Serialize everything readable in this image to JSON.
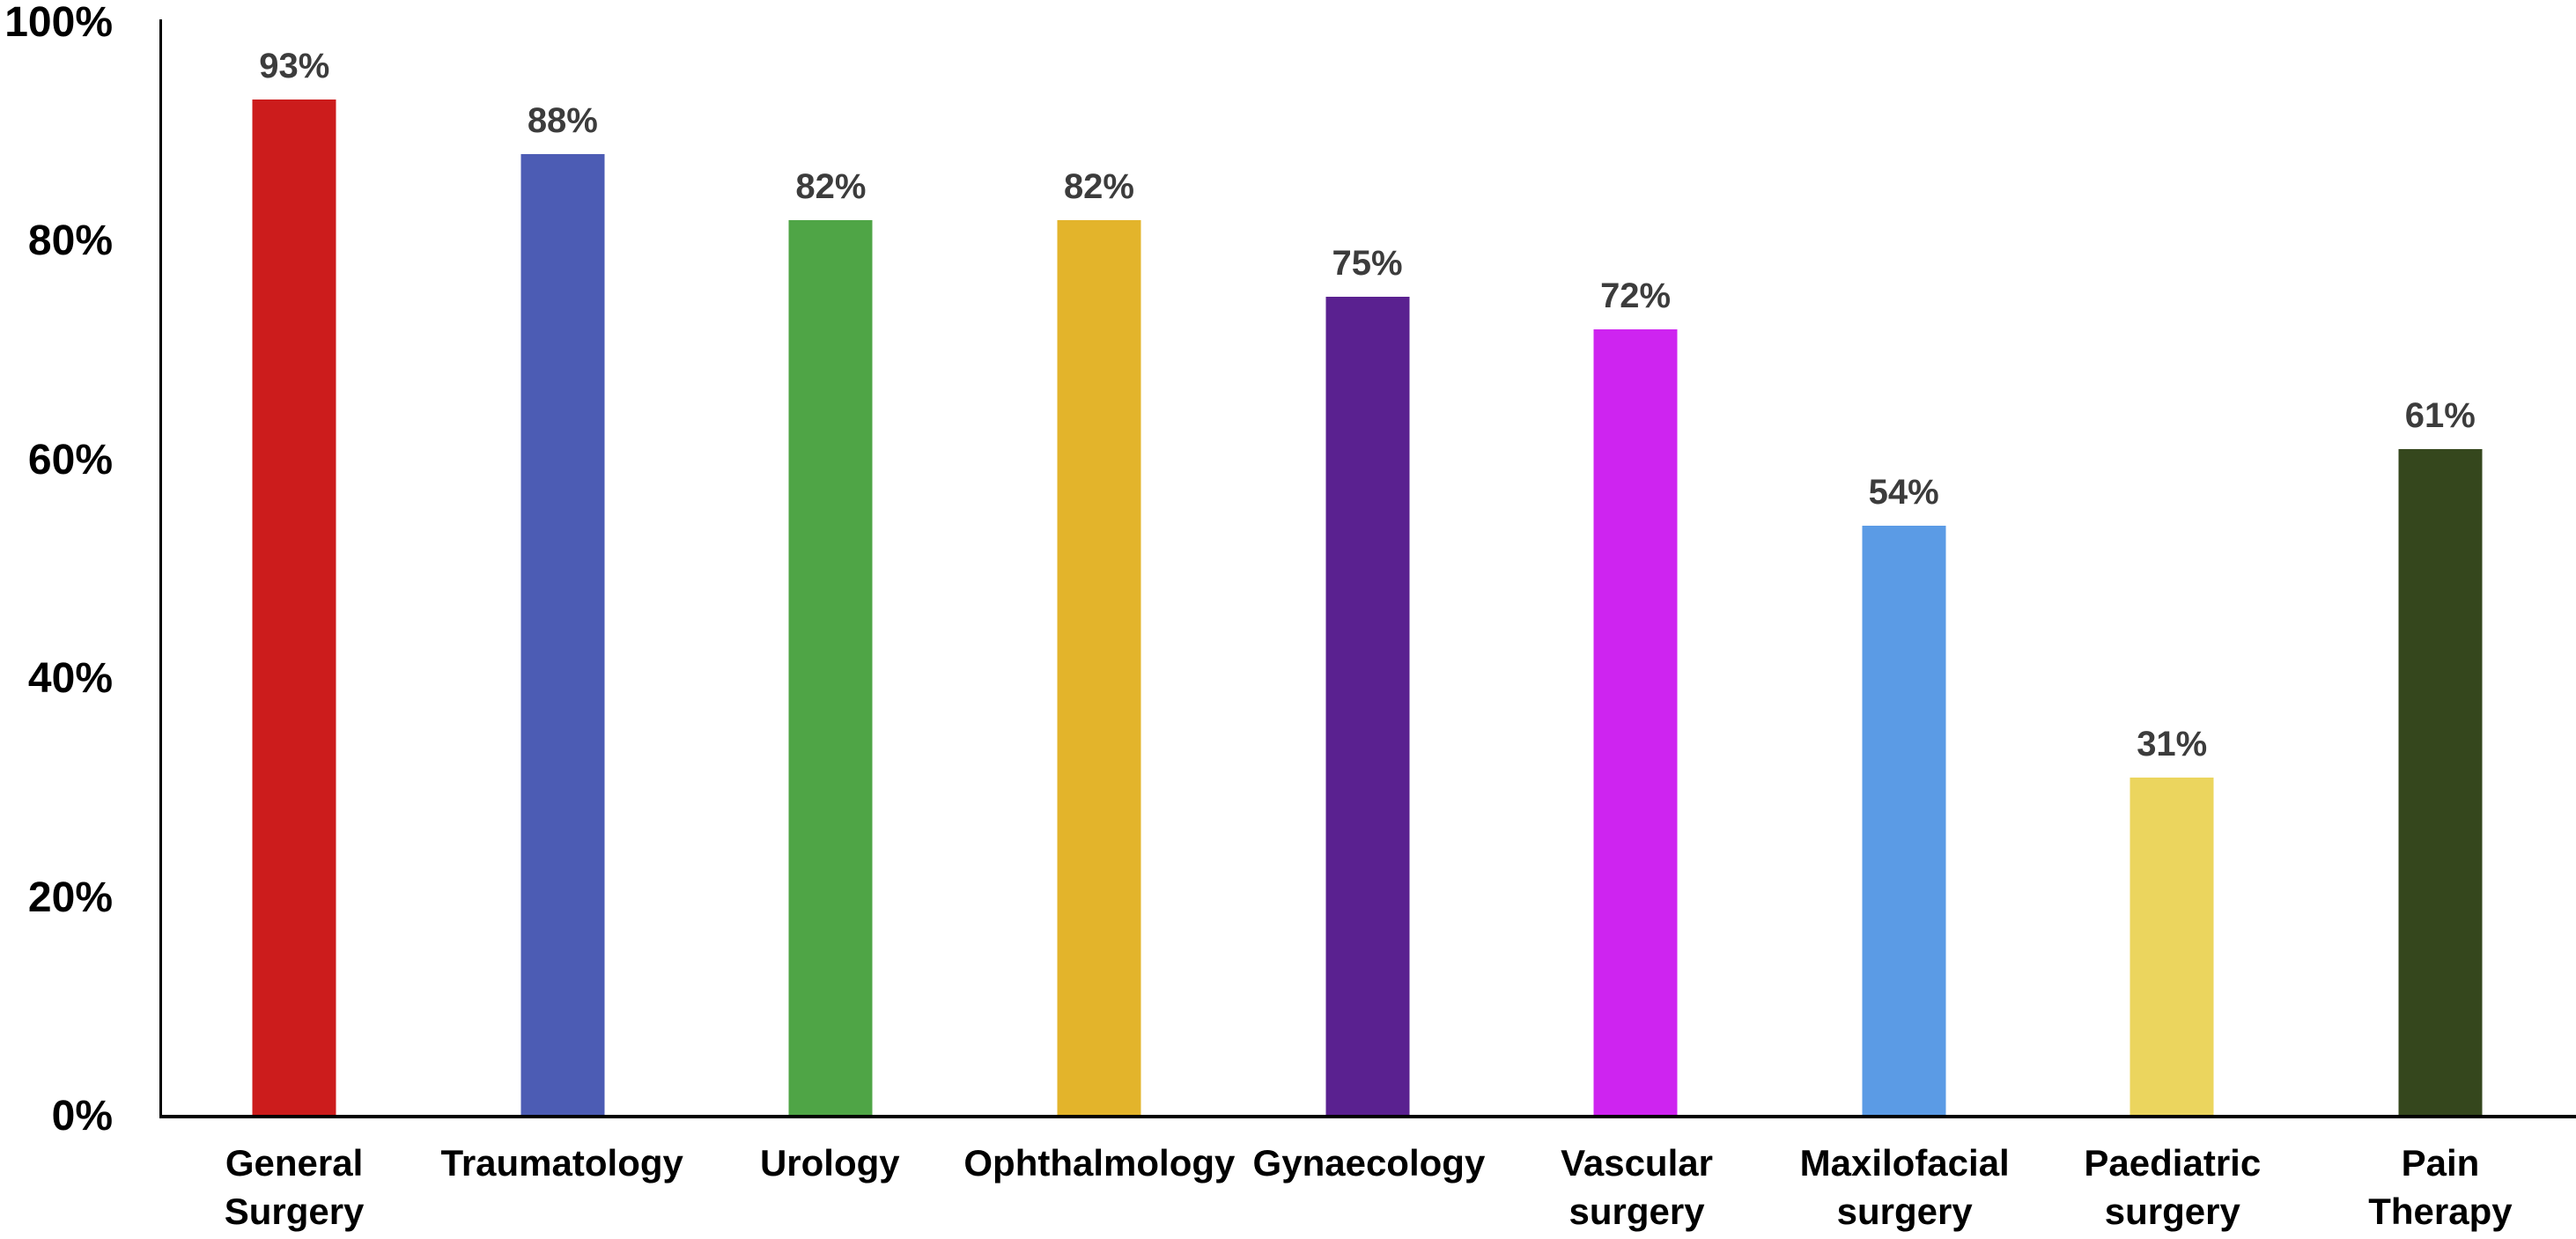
{
  "chart_data": {
    "type": "bar",
    "title": "",
    "xlabel": "",
    "ylabel": "",
    "categories": [
      "General Surgery",
      "Traumatology",
      "Urology",
      "Ophthalmology",
      "Gynaecology",
      "Vascular\nsurgery",
      "Maxilofacial\nsurgery",
      "Paediatric\nsurgery",
      "Pain\nTherapy"
    ],
    "values": [
      93,
      88,
      82,
      82,
      75,
      72,
      54,
      31,
      61
    ],
    "value_labels": [
      "93%",
      "88%",
      "82%",
      "82%",
      "75%",
      "72%",
      "54%",
      "31%",
      "61%"
    ],
    "bar_colors": [
      "#cc1c1c",
      "#4c5cb4",
      "#4fa546",
      "#e3b42b",
      "#5a2190",
      "#ce24f0",
      "#5b9be5",
      "#ebd55e",
      "#35471d"
    ],
    "ylim": [
      0,
      100
    ],
    "yticks": [
      {
        "label": "100%",
        "value": 100
      },
      {
        "label": "80%",
        "value": 80
      },
      {
        "label": "60%",
        "value": 60
      },
      {
        "label": "40%",
        "value": 40
      },
      {
        "label": "20%",
        "value": 20
      },
      {
        "label": "0%",
        "value": 0
      }
    ],
    "grid": false,
    "legend_position": "none",
    "axis_color": "#000000",
    "value_label_color": "#3c3c3c"
  }
}
